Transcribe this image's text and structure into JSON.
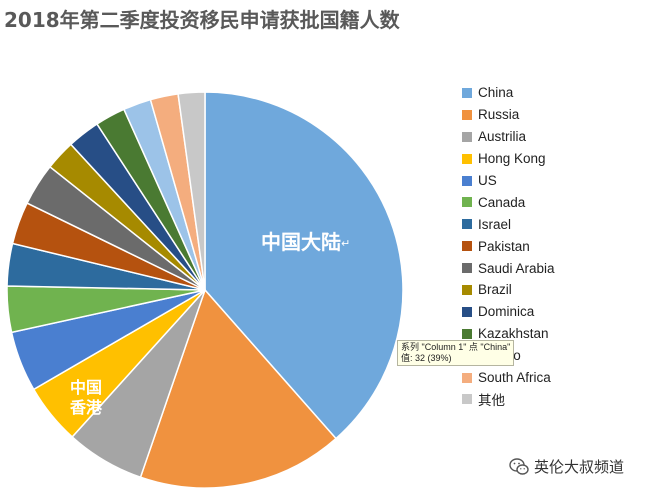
{
  "title": "2018年第二季度投资移民申请获批国籍人数",
  "chart_data": {
    "type": "pie",
    "title": "2018年第二季度投资移民申请获批国籍人数",
    "slices": [
      {
        "label": "China",
        "value": 39,
        "color": "#6fa8dc"
      },
      {
        "label": "Russia",
        "value": 17,
        "color": "#f0923f"
      },
      {
        "label": "Austrilia",
        "value": 6.5,
        "color": "#a5a5a5"
      },
      {
        "label": "Hong Kong",
        "value": 5,
        "color": "#ffc000"
      },
      {
        "label": "US",
        "value": 5,
        "color": "#4a7fd0"
      },
      {
        "label": "Canada",
        "value": 3.8,
        "color": "#70b34f"
      },
      {
        "label": "Israel",
        "value": 3.5,
        "color": "#2d6b9e"
      },
      {
        "label": "Pakistan",
        "value": 3.5,
        "color": "#b5520f"
      },
      {
        "label": "Saudi Arabia",
        "value": 3.5,
        "color": "#6b6b6b"
      },
      {
        "label": "Brazil",
        "value": 2.5,
        "color": "#a68a00"
      },
      {
        "label": "Dominica",
        "value": 2.7,
        "color": "#274e86"
      },
      {
        "label": "Kazakhstan",
        "value": 2.5,
        "color": "#4a7a32"
      },
      {
        "label": "Mexico",
        "value": 2.3,
        "color": "#9cc3e8"
      },
      {
        "label": "South Africa",
        "value": 2.3,
        "color": "#f4ad7e"
      },
      {
        "label": "其他",
        "value": 2.2,
        "color": "#c8c8c8"
      }
    ],
    "legend_position": "right"
  },
  "labels": {
    "china_slice": "中国大陆",
    "return_mark": "↵",
    "hk_line1": "中国",
    "hk_line2": "香港"
  },
  "tooltip": {
    "line1": "系列 \"Column 1\" 点 \"China\"",
    "line2": "值: 32 (39%)"
  },
  "watermark": {
    "text": "英伦大叔频道",
    "icon": "wechat-icon"
  }
}
